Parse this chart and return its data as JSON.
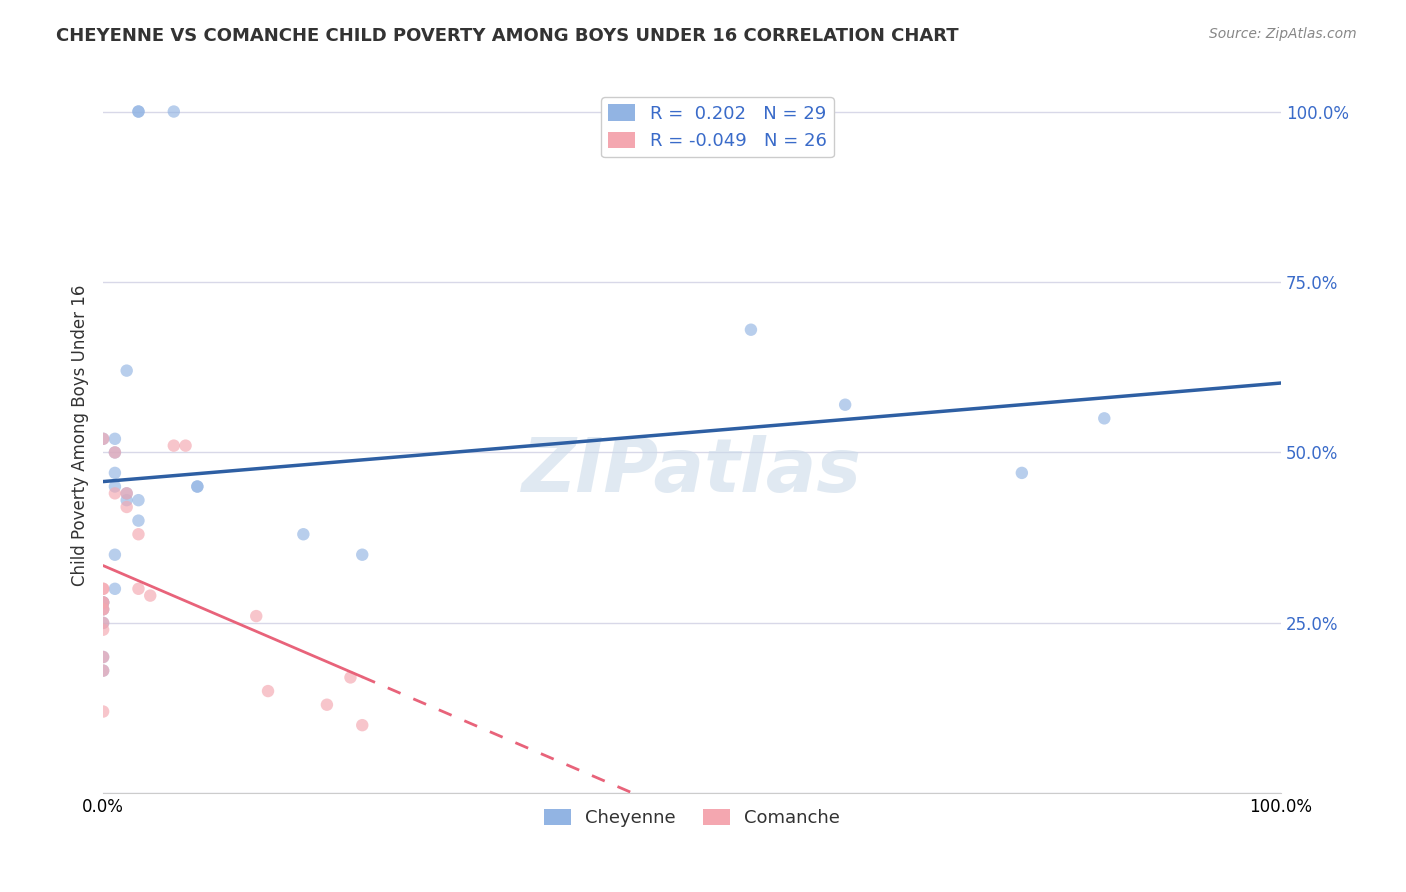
{
  "title": "CHEYENNE VS COMANCHE CHILD POVERTY AMONG BOYS UNDER 16 CORRELATION CHART",
  "source": "Source: ZipAtlas.com",
  "ylabel": "Child Poverty Among Boys Under 16",
  "watermark": "ZIPatlas",
  "cheyenne_color": "#92b4e3",
  "comanche_color": "#f4a7b0",
  "cheyenne_line_color": "#2e5fa3",
  "comanche_line_color": "#e8637a",
  "legend_cheyenne_label": "Cheyenne",
  "legend_comanche_label": "Comanche",
  "cheyenne_R": 0.202,
  "cheyenne_N": 29,
  "comanche_R": -0.049,
  "comanche_N": 26,
  "cheyenne_x": [
    0.02,
    0.03,
    0.03,
    0.06,
    0.0,
    0.01,
    0.01,
    0.01,
    0.01,
    0.02,
    0.02,
    0.03,
    0.03,
    0.01,
    0.01,
    0.0,
    0.0,
    0.0,
    0.0,
    0.0,
    0.08,
    0.08,
    0.17,
    0.22,
    0.55,
    0.63,
    0.78,
    0.85,
    0.0
  ],
  "cheyenne_y": [
    0.62,
    1.0,
    1.0,
    1.0,
    0.52,
    0.52,
    0.5,
    0.47,
    0.45,
    0.44,
    0.43,
    0.43,
    0.4,
    0.35,
    0.3,
    0.28,
    0.28,
    0.27,
    0.25,
    0.2,
    0.45,
    0.45,
    0.38,
    0.35,
    0.68,
    0.57,
    0.47,
    0.55,
    0.18
  ],
  "comanche_x": [
    0.0,
    0.01,
    0.01,
    0.02,
    0.02,
    0.03,
    0.03,
    0.04,
    0.06,
    0.07,
    0.0,
    0.0,
    0.0,
    0.0,
    0.0,
    0.0,
    0.0,
    0.13,
    0.14,
    0.19,
    0.22,
    0.21,
    0.0,
    0.0,
    0.0,
    0.0
  ],
  "comanche_y": [
    0.52,
    0.5,
    0.44,
    0.44,
    0.42,
    0.38,
    0.3,
    0.29,
    0.51,
    0.51,
    0.3,
    0.28,
    0.27,
    0.24,
    0.2,
    0.18,
    0.12,
    0.26,
    0.15,
    0.13,
    0.1,
    0.17,
    0.3,
    0.28,
    0.27,
    0.25
  ],
  "xlim": [
    0.0,
    1.0
  ],
  "ylim": [
    0.0,
    1.05
  ],
  "yticks": [
    0.0,
    0.25,
    0.5,
    0.75,
    1.0
  ],
  "ytick_labels": [
    "",
    "25.0%",
    "50.0%",
    "75.0%",
    "100.0%"
  ],
  "xtick_labels": [
    "0.0%",
    "100.0%"
  ],
  "background_color": "#ffffff",
  "grid_color": "#d8d8e8",
  "marker_size": 80,
  "marker_alpha": 0.65
}
